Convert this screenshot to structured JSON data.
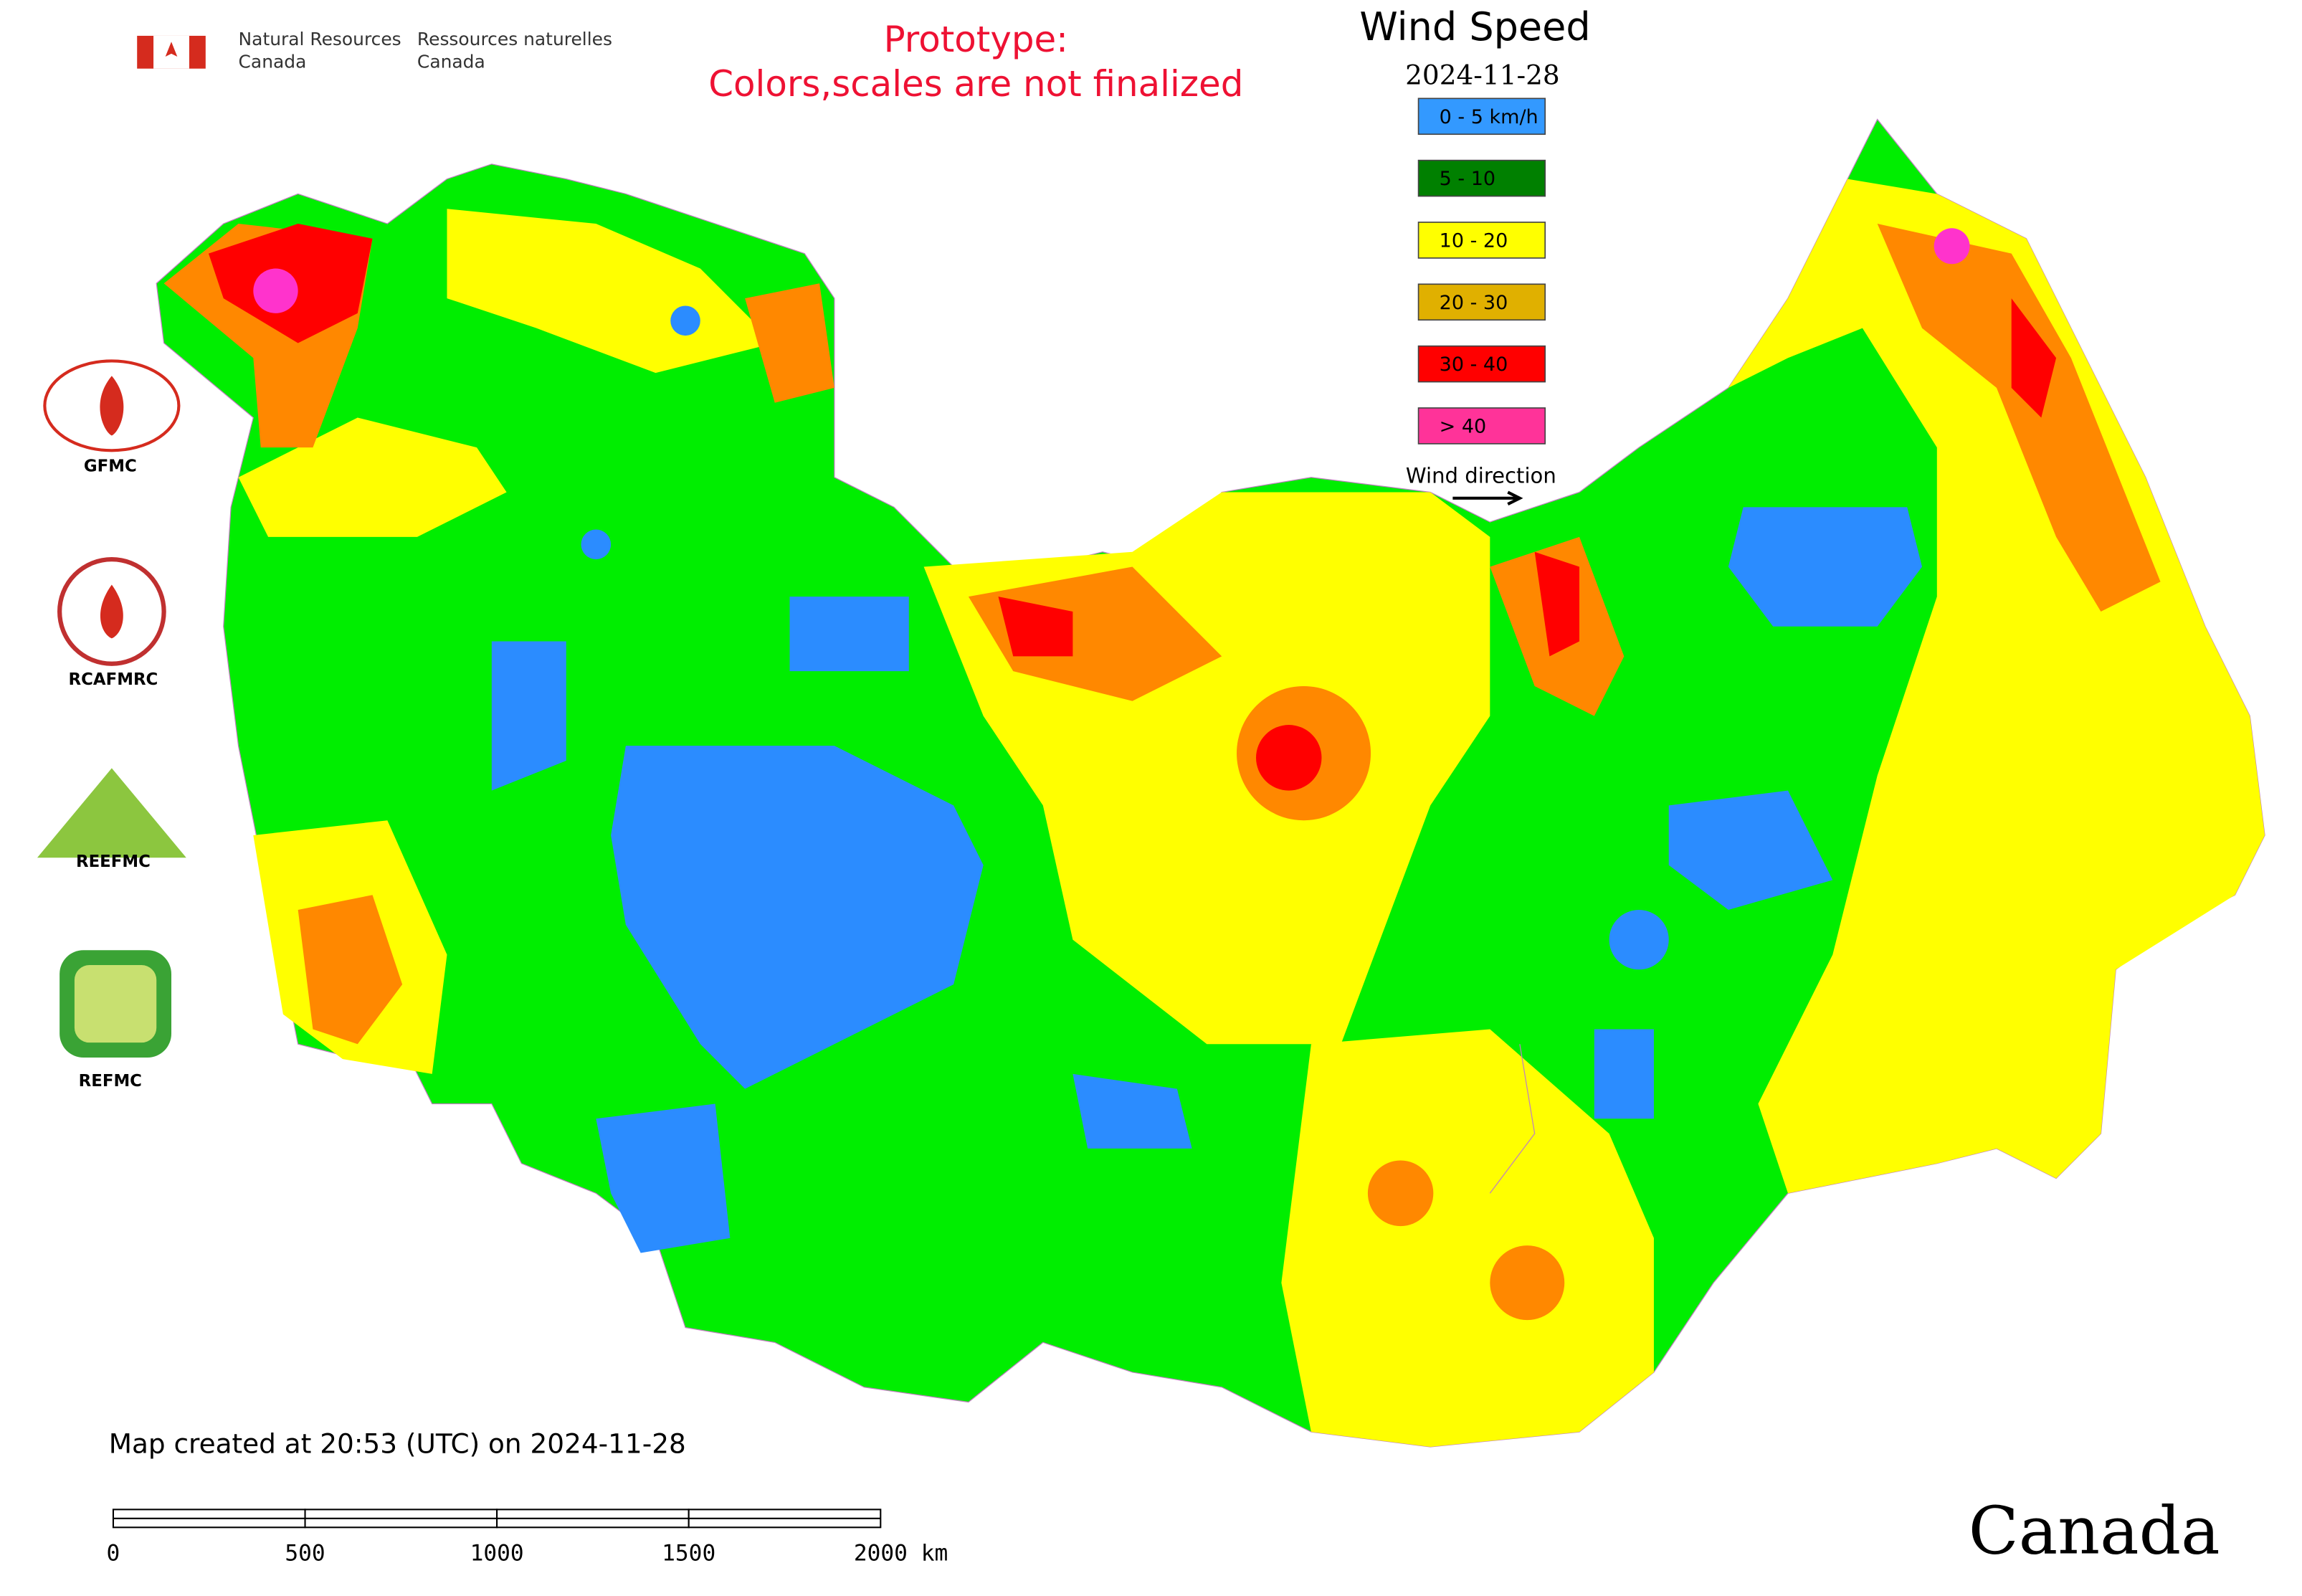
{
  "agency": {
    "english_line1": "Natural Resources",
    "english_line2": "Canada",
    "french_line1": "Ressources naturelles",
    "french_line2": "Canada"
  },
  "notice": {
    "line1": "Prototype:",
    "line2": "Colors,scales are not finalized"
  },
  "legend": {
    "title": "Wind Speed",
    "date": "2024-11-28",
    "items": [
      {
        "label": "0 - 5 km/h",
        "color": "#3399ff"
      },
      {
        "label": "5 - 10",
        "color": "#008000"
      },
      {
        "label": "10 - 20",
        "color": "#ffff00"
      },
      {
        "label": "20 - 30",
        "color": "#e0b000"
      },
      {
        "label": "30 - 40",
        "color": "#ff0000"
      },
      {
        "label": "> 40",
        "color": "#ff3399"
      }
    ],
    "direction_label": "Wind direction"
  },
  "logos": [
    "GFMC",
    "RCAFMRC",
    "REEFMC",
    "REFMC"
  ],
  "timestamp": "Map created at 20:53 (UTC) on 2024-11-28",
  "scale_bar": {
    "ticks": [
      "0",
      "500",
      "1000",
      "1500",
      "2000 km"
    ]
  },
  "wordmark": "Canada"
}
